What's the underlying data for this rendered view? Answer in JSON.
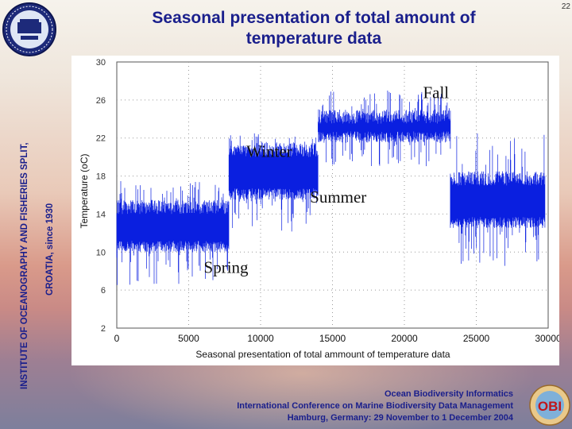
{
  "slide": {
    "number": "22",
    "title_line1": "Seasonal presentation of total amount of",
    "title_line2": "temperature data"
  },
  "sidebar": {
    "line1": "INSTITUTE OF OCEANOGRAPHY AND FISHERIES SPLIT,",
    "line2": "CROATIA, since 1930"
  },
  "footer": {
    "line1": "Ocean Biodiversity Informatics",
    "line2": "International Conference on Marine Biodiversity Data Management",
    "line3": "Hamburg, Germany: 29 November to 1 December 2004"
  },
  "logo": {
    "text": "OBI"
  },
  "colors": {
    "series": "#0a1fe0",
    "title": "#1a1f8c",
    "grid": "#9a9a9a"
  },
  "chart_data": {
    "type": "line",
    "title": "",
    "xlabel": "Seasonal presentation of total ammount of temperature data",
    "ylabel": "Temperature (oC)",
    "xlim": [
      0,
      30000
    ],
    "ylim": [
      2,
      30
    ],
    "xticks": [
      0,
      5000,
      10000,
      15000,
      20000,
      25000,
      30000
    ],
    "yticks": [
      2,
      6,
      10,
      14,
      18,
      22,
      26,
      30
    ],
    "grid": true,
    "series": [
      {
        "name": "Temperature",
        "segments": [
          {
            "season": "Spring",
            "x_start": 0,
            "x_end": 7800,
            "low": 6.5,
            "high": 17.5,
            "typical_low": 10,
            "typical_high": 15.5
          },
          {
            "season": "Winter",
            "x_start": 7800,
            "x_end": 14000,
            "low": 12,
            "high": 22.5,
            "typical_low": 15.5,
            "typical_high": 21.5
          },
          {
            "season": "Fall",
            "x_start": 14000,
            "x_end": 23200,
            "low": 19,
            "high": 27,
            "typical_low": 21.5,
            "typical_high": 25
          },
          {
            "season": "Summer",
            "x_start": 23200,
            "x_end": 29800,
            "low": 8,
            "high": 22.5,
            "typical_low": 12.5,
            "typical_high": 18.5
          }
        ]
      }
    ],
    "annotations": [
      {
        "text": "Winter",
        "x": 10600,
        "y": 20
      },
      {
        "text": "Fall",
        "x": 22200,
        "y": 26.2
      },
      {
        "text": "Summer",
        "x": 15400,
        "y": 15.2
      },
      {
        "text": "Spring",
        "x": 7600,
        "y": 7.8
      }
    ]
  }
}
